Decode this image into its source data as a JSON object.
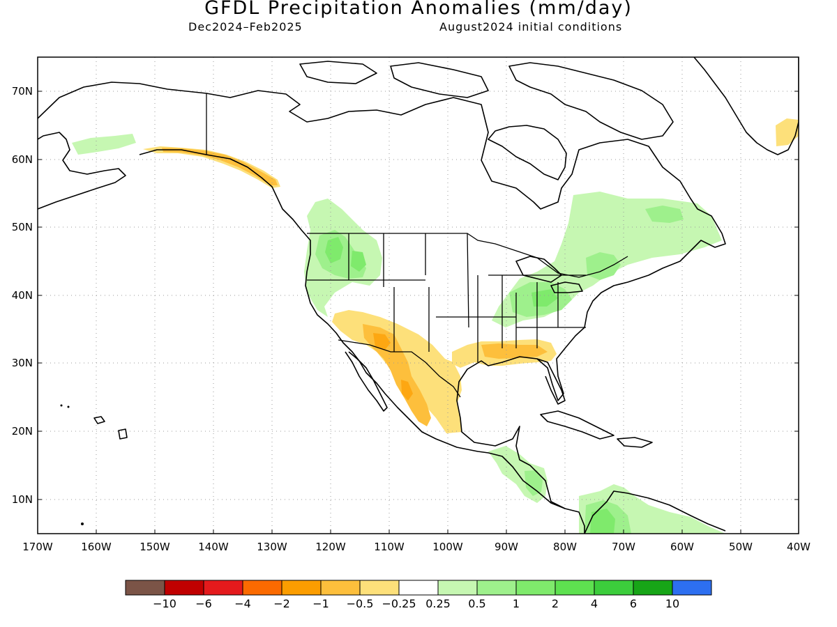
{
  "title": "GFDL Precipitation Anomalies (mm/day)",
  "subtitle_left": "Dec2024–Feb2025",
  "subtitle_right": "August2024 initial conditions",
  "colors": {
    "background": "#ffffff",
    "land_outline": "#000000",
    "grid": "#9a9a9a"
  },
  "lat_labels": [
    "70N",
    "60N",
    "50N",
    "40N",
    "30N",
    "20N",
    "10N"
  ],
  "lon_labels": [
    "170W",
    "160W",
    "150W",
    "140W",
    "130W",
    "120W",
    "110W",
    "100W",
    "90W",
    "80W",
    "70W",
    "60W",
    "50W",
    "40W"
  ],
  "colorbar": {
    "colors": [
      "#7b5447",
      "#c00000",
      "#e41a1c",
      "#fb6a00",
      "#fc9d00",
      "#fdbf3c",
      "#fde07a",
      "#ffffff",
      "#c6f7b2",
      "#9ef08c",
      "#7fea6c",
      "#5ee150",
      "#3ccd3c",
      "#17a517",
      "#2d6ff0"
    ],
    "labels": [
      "−10",
      "−6",
      "−4",
      "−2",
      "−1",
      "−0.5",
      "−0.25",
      "0.25",
      "0.5",
      "1",
      "2",
      "4",
      "6",
      "10"
    ]
  }
}
